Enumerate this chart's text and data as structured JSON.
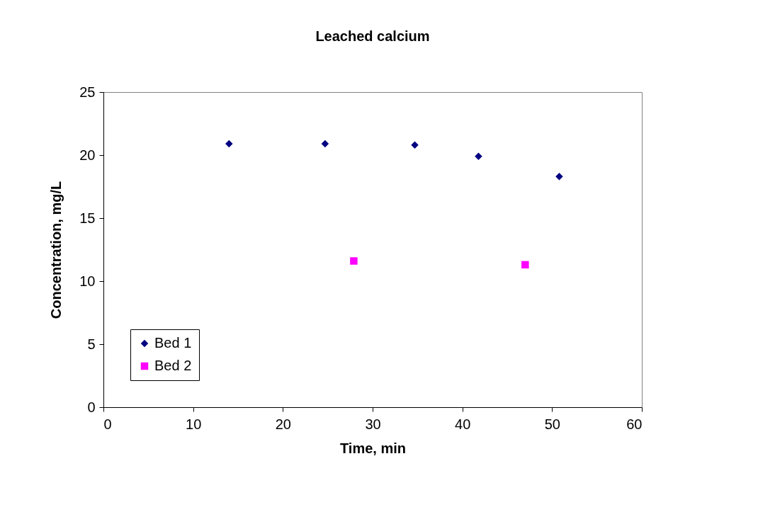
{
  "chart_data": {
    "type": "scatter",
    "title": "Leached calcium",
    "xlabel": "Time, min",
    "ylabel": "Concentration, mg/L",
    "xlim": [
      0,
      60
    ],
    "xticks": [
      0,
      10,
      20,
      30,
      40,
      50,
      60
    ],
    "ylim": [
      0,
      25
    ],
    "yticks": [
      0,
      5,
      10,
      15,
      20,
      25
    ],
    "grid": false,
    "legend": "bottom left",
    "series": [
      {
        "name": "Bed 1",
        "color": "#000080",
        "marker": "diamond",
        "x": [
          14,
          24.7,
          34.7,
          41.8,
          50.8
        ],
        "values": [
          20.9,
          20.9,
          20.8,
          19.9,
          18.3
        ]
      },
      {
        "name": "Bed 2",
        "color": "#ff00ff",
        "marker": "square",
        "x": [
          27.9,
          47
        ],
        "values": [
          11.6,
          11.3
        ]
      }
    ]
  }
}
